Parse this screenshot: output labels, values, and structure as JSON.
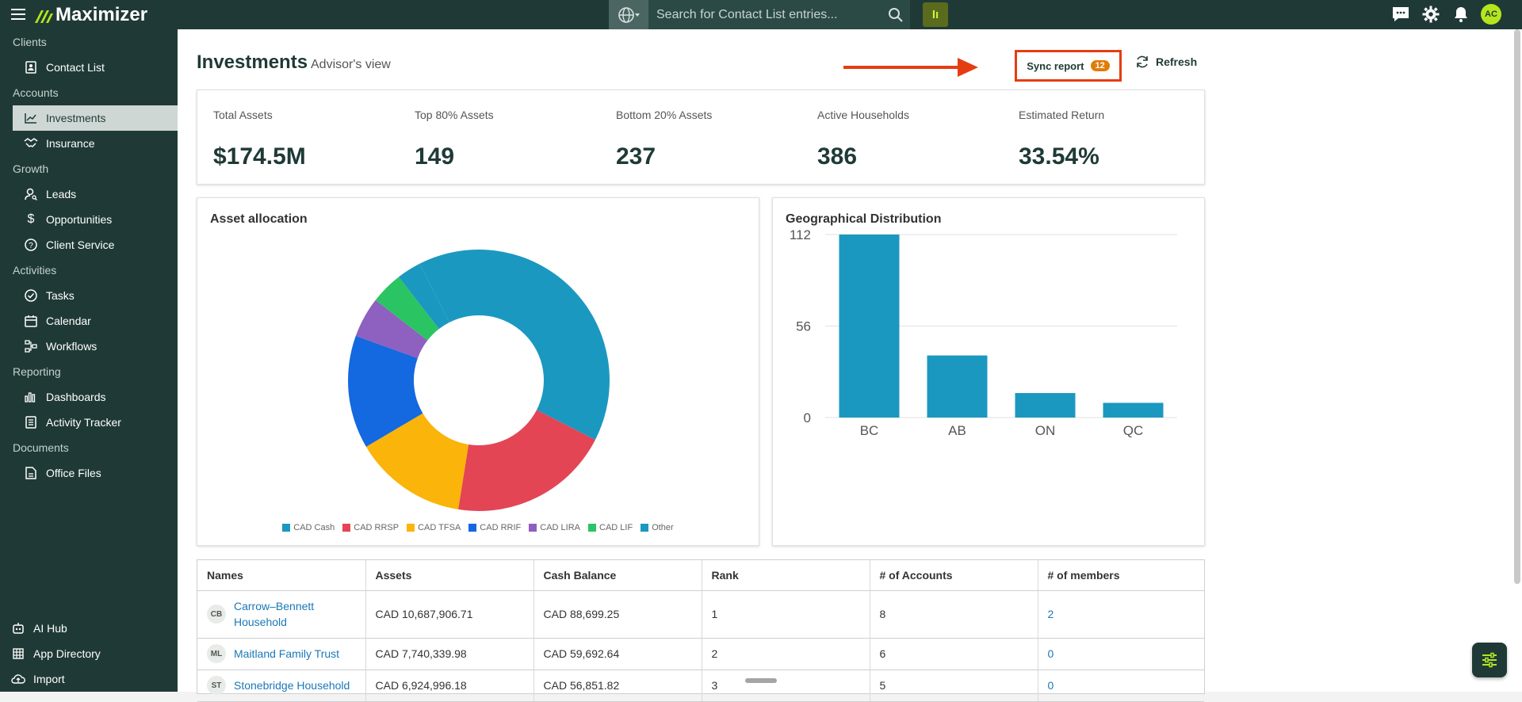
{
  "app": {
    "brand": "Maximizer",
    "search_placeholder": "Search for Contact List entries...",
    "ic_label": "Iı",
    "avatar_initials": "AC"
  },
  "sidebar": {
    "sections": [
      {
        "title": "Clients",
        "items": [
          {
            "label": "Contact List",
            "icon": "contact-list-icon"
          }
        ]
      },
      {
        "title": "Accounts",
        "items": [
          {
            "label": "Investments",
            "icon": "chart-line-icon",
            "active": true
          },
          {
            "label": "Insurance",
            "icon": "handshake-icon"
          }
        ]
      },
      {
        "title": "Growth",
        "items": [
          {
            "label": "Leads",
            "icon": "person-icon"
          },
          {
            "label": "Opportunities",
            "icon": "dollar-icon"
          },
          {
            "label": "Client Service",
            "icon": "help-circle-icon"
          }
        ]
      },
      {
        "title": "Activities",
        "items": [
          {
            "label": "Tasks",
            "icon": "check-circle-icon"
          },
          {
            "label": "Calendar",
            "icon": "calendar-icon"
          },
          {
            "label": "Workflows",
            "icon": "workflow-icon"
          }
        ]
      },
      {
        "title": "Reporting",
        "items": [
          {
            "label": "Dashboards",
            "icon": "bar-chart-icon"
          },
          {
            "label": "Activity Tracker",
            "icon": "tracker-icon"
          }
        ]
      },
      {
        "title": "Documents",
        "items": [
          {
            "label": "Office Files",
            "icon": "file-icon"
          }
        ]
      }
    ],
    "bottom": [
      {
        "label": "AI Hub",
        "icon": "robot-icon"
      },
      {
        "label": "App Directory",
        "icon": "grid-icon"
      },
      {
        "label": "Import",
        "icon": "cloud-upload-icon"
      }
    ]
  },
  "header": {
    "title": "Investments",
    "subtitle": "Advisor's view",
    "sync_label": "Sync report",
    "sync_count": "12",
    "refresh_label": "Refresh"
  },
  "kpis": [
    {
      "label": "Total Assets",
      "value": "$174.5M"
    },
    {
      "label": "Top 80% Assets",
      "value": "149"
    },
    {
      "label": "Bottom 20% Assets",
      "value": "237"
    },
    {
      "label": "Active Households",
      "value": "386"
    },
    {
      "label": "Estimated Return",
      "value": "33.54%"
    }
  ],
  "chart_data": [
    {
      "type": "pie",
      "title": "Asset allocation",
      "donut": true,
      "legend_position": "bottom",
      "slices": [
        {
          "name": "CAD Cash",
          "value": 40,
          "color": "#1b98c0"
        },
        {
          "name": "CAD RRSP",
          "value": 20,
          "color": "#e34555"
        },
        {
          "name": "CAD TFSA",
          "value": 14,
          "color": "#fbb40a"
        },
        {
          "name": "CAD RRIF",
          "value": 14,
          "color": "#1468e0"
        },
        {
          "name": "CAD LIRA",
          "value": 5,
          "color": "#8e60c0"
        },
        {
          "name": "CAD LIF",
          "value": 4,
          "color": "#2bc463"
        },
        {
          "name": "Other",
          "value": 3,
          "color": "#1b98c0"
        }
      ]
    },
    {
      "type": "bar",
      "title": "Geographical Distribution",
      "categories": [
        "BC",
        "AB",
        "ON",
        "QC"
      ],
      "values": [
        112,
        38,
        15,
        9
      ],
      "yticks": [
        "0",
        "56",
        "112"
      ],
      "ylim": [
        0,
        112
      ],
      "grid": true,
      "color": "#1b98c0"
    }
  ],
  "table": {
    "columns": [
      "Names",
      "Assets",
      "Cash Balance",
      "Rank",
      "# of Accounts",
      "# of members"
    ],
    "rows": [
      {
        "initials": "CB",
        "name": "Carrow–Bennett Household",
        "assets": "CAD 10,687,906.71",
        "cash": "CAD 88,699.25",
        "rank": "1",
        "accounts": "8",
        "members": "2"
      },
      {
        "initials": "ML",
        "name": "Maitland Family Trust",
        "assets": "CAD 7,740,339.98",
        "cash": "CAD 59,692.64",
        "rank": "2",
        "accounts": "6",
        "members": "0"
      },
      {
        "initials": "ST",
        "name": "Stonebridge Household",
        "assets": "CAD 6,924,996.18",
        "cash": "CAD 56,851.82",
        "rank": "3",
        "accounts": "5",
        "members": "0"
      }
    ]
  }
}
